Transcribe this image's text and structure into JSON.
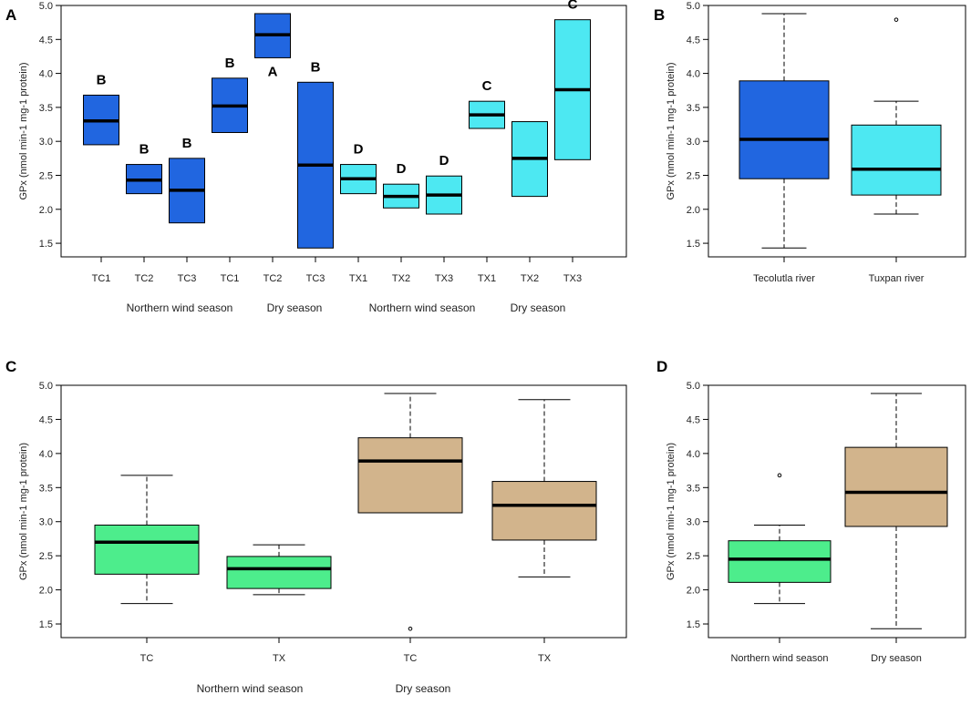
{
  "chart_data": [
    {
      "panel": "A",
      "type": "box",
      "ylabel": "GPx (nmol min-1 mg-1 protein)",
      "ylim": [
        1.3,
        5.0
      ],
      "yticks": [
        "1.5",
        "2.0",
        "2.5",
        "3.0",
        "3.5",
        "4.0",
        "4.5",
        "5.0"
      ],
      "categories": [
        "TC1",
        "TC2",
        "TC3",
        "TC1",
        "TC2",
        "TC3",
        "TX1",
        "TX2",
        "TX3",
        "TX1",
        "TX2",
        "TX3"
      ],
      "group_labels": [
        "Northern wind season",
        "Dry season",
        "Northern wind season",
        "Dry season"
      ],
      "boxes": [
        {
          "q1": 2.95,
          "median": 3.3,
          "q3": 3.68,
          "color": "#2166e0",
          "sig": "B",
          "sig_pos": "top"
        },
        {
          "q1": 2.23,
          "median": 2.43,
          "q3": 2.66,
          "color": "#2166e0",
          "sig": "B",
          "sig_pos": "top"
        },
        {
          "q1": 1.8,
          "median": 2.28,
          "q3": 2.75,
          "color": "#2166e0",
          "sig": "B",
          "sig_pos": "top"
        },
        {
          "q1": 3.13,
          "median": 3.52,
          "q3": 3.93,
          "color": "#2166e0",
          "sig": "B",
          "sig_pos": "top"
        },
        {
          "q1": 4.23,
          "median": 4.57,
          "q3": 4.88,
          "color": "#2166e0",
          "sig": "A",
          "sig_pos": "bottom"
        },
        {
          "q1": 1.43,
          "median": 2.65,
          "q3": 3.87,
          "color": "#2166e0",
          "sig": "B",
          "sig_pos": "top"
        },
        {
          "q1": 2.23,
          "median": 2.45,
          "q3": 2.66,
          "color": "#4de8f2",
          "sig": "D",
          "sig_pos": "top"
        },
        {
          "q1": 2.02,
          "median": 2.19,
          "q3": 2.37,
          "color": "#4de8f2",
          "sig": "D",
          "sig_pos": "top"
        },
        {
          "q1": 1.93,
          "median": 2.21,
          "q3": 2.49,
          "color": "#4de8f2",
          "sig": "D",
          "sig_pos": "top"
        },
        {
          "q1": 3.19,
          "median": 3.39,
          "q3": 3.59,
          "color": "#4de8f2",
          "sig": "C",
          "sig_pos": "top"
        },
        {
          "q1": 2.19,
          "median": 2.75,
          "q3": 3.29,
          "color": "#4de8f2",
          "sig": "",
          "sig_pos": "top"
        },
        {
          "q1": 2.73,
          "median": 3.76,
          "q3": 4.79,
          "color": "#4de8f2",
          "sig": "C",
          "sig_pos": "top"
        }
      ]
    },
    {
      "panel": "B",
      "type": "box",
      "ylabel": "GPx (nmol min-1 mg-1 protein)",
      "ylim": [
        1.3,
        5.0
      ],
      "yticks": [
        "1.5",
        "2.0",
        "2.5",
        "3.0",
        "3.5",
        "4.0",
        "4.5",
        "5.0"
      ],
      "categories": [
        "Tecolutla river",
        "Tuxpan river"
      ],
      "boxes": [
        {
          "whislo": 1.43,
          "q1": 2.45,
          "median": 3.03,
          "q3": 3.89,
          "whishi": 4.88,
          "color": "#2166e0",
          "outliers": []
        },
        {
          "whislo": 1.93,
          "q1": 2.21,
          "median": 2.59,
          "q3": 3.24,
          "whishi": 3.59,
          "color": "#4de8f2",
          "outliers": [
            4.79
          ]
        }
      ]
    },
    {
      "panel": "C",
      "type": "box",
      "ylabel": "GPx (nmol min-1 mg-1 protein)",
      "ylim": [
        1.3,
        5.0
      ],
      "yticks": [
        "1.5",
        "2.0",
        "2.5",
        "3.0",
        "3.5",
        "4.0",
        "4.5",
        "5.0"
      ],
      "categories": [
        "TC",
        "TX",
        "TC",
        "TX"
      ],
      "group_labels": [
        "Northern wind season",
        "Dry season"
      ],
      "boxes": [
        {
          "whislo": 1.8,
          "q1": 2.23,
          "median": 2.7,
          "q3": 2.95,
          "whishi": 3.68,
          "color": "#4ded8c",
          "outliers": []
        },
        {
          "whislo": 1.93,
          "q1": 2.02,
          "median": 2.31,
          "q3": 2.49,
          "whishi": 2.66,
          "color": "#4ded8c",
          "outliers": []
        },
        {
          "whislo": 3.13,
          "q1": 3.13,
          "median": 3.89,
          "q3": 4.23,
          "whishi": 4.88,
          "color": "#d2b48c",
          "outliers": [
            1.43
          ]
        },
        {
          "whislo": 2.19,
          "q1": 2.73,
          "median": 3.24,
          "q3": 3.59,
          "whishi": 4.79,
          "color": "#d2b48c",
          "outliers": []
        }
      ]
    },
    {
      "panel": "D",
      "type": "box",
      "ylabel": "GPx (nmol min-1 mg-1 protein)",
      "ylim": [
        1.3,
        5.0
      ],
      "yticks": [
        "1.5",
        "2.0",
        "2.5",
        "3.0",
        "3.5",
        "4.0",
        "4.5",
        "5.0"
      ],
      "categories": [
        "Northern wind season",
        "Dry season"
      ],
      "boxes": [
        {
          "whislo": 1.8,
          "q1": 2.11,
          "median": 2.45,
          "q3": 2.72,
          "whishi": 2.95,
          "color": "#4ded8c",
          "outliers": [
            3.68
          ]
        },
        {
          "whislo": 1.43,
          "q1": 2.93,
          "median": 3.43,
          "q3": 4.09,
          "whishi": 4.88,
          "color": "#d2b48c",
          "outliers": []
        }
      ]
    }
  ]
}
